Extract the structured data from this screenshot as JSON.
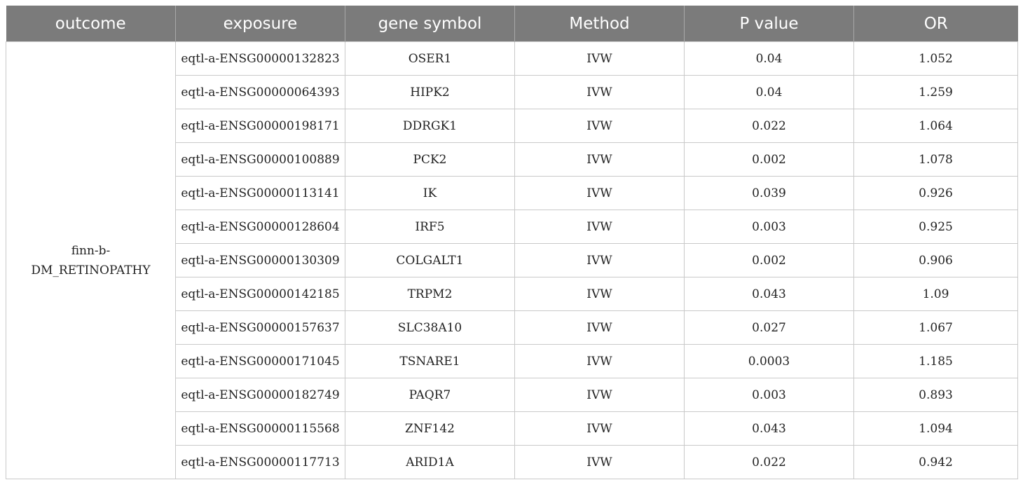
{
  "table": {
    "headers": [
      "outcome",
      "exposure",
      "gene symbol",
      "Method",
      "P value",
      "OR"
    ],
    "outcome": [
      "finn-b-",
      "DM_RETINOPATHY"
    ],
    "rows": [
      {
        "exposure": "eqtl-a-ENSG00000132823",
        "gene": "OSER1",
        "method": "IVW",
        "p": "0.04",
        "or": "1.052"
      },
      {
        "exposure": "eqtl-a-ENSG00000064393",
        "gene": "HIPK2",
        "method": "IVW",
        "p": "0.04",
        "or": "1.259"
      },
      {
        "exposure": "eqtl-a-ENSG00000198171",
        "gene": "DDRGK1",
        "method": "IVW",
        "p": "0.022",
        "or": "1.064"
      },
      {
        "exposure": "eqtl-a-ENSG00000100889",
        "gene": "PCK2",
        "method": "IVW",
        "p": "0.002",
        "or": "1.078"
      },
      {
        "exposure": "eqtl-a-ENSG00000113141",
        "gene": "IK",
        "method": "IVW",
        "p": "0.039",
        "or": "0.926"
      },
      {
        "exposure": "eqtl-a-ENSG00000128604",
        "gene": "IRF5",
        "method": "IVW",
        "p": "0.003",
        "or": "0.925"
      },
      {
        "exposure": "eqtl-a-ENSG00000130309",
        "gene": "COLGALT1",
        "method": "IVW",
        "p": "0.002",
        "or": "0.906"
      },
      {
        "exposure": "eqtl-a-ENSG00000142185",
        "gene": "TRPM2",
        "method": "IVW",
        "p": "0.043",
        "or": "1.09"
      },
      {
        "exposure": "eqtl-a-ENSG00000157637",
        "gene": "SLC38A10",
        "method": "IVW",
        "p": "0.027",
        "or": "1.067"
      },
      {
        "exposure": "eqtl-a-ENSG00000171045",
        "gene": "TSNARE1",
        "method": "IVW",
        "p": "0.0003",
        "or": "1.185"
      },
      {
        "exposure": "eqtl-a-ENSG00000182749",
        "gene": "PAQR7",
        "method": "IVW",
        "p": "0.003",
        "or": "0.893"
      },
      {
        "exposure": "eqtl-a-ENSG00000115568",
        "gene": "ZNF142",
        "method": "IVW",
        "p": "0.043",
        "or": "1.094"
      },
      {
        "exposure": "eqtl-a-ENSG00000117713",
        "gene": "ARID1A",
        "method": "IVW",
        "p": "0.022",
        "or": "0.942"
      }
    ]
  }
}
